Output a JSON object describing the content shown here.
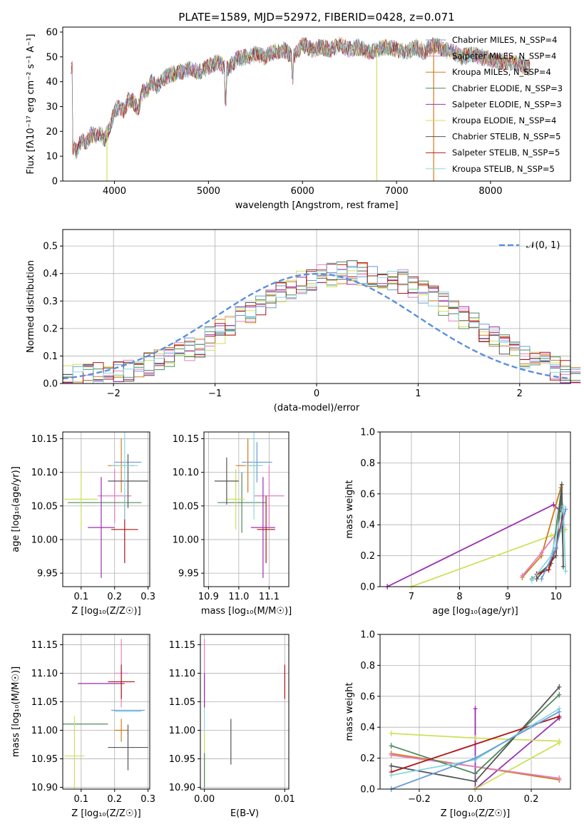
{
  "chart_data": [
    {
      "type": "line",
      "title": "PLATE=1589, MJD=52972, FIBERID=0428, z=0.071",
      "xlabel": "wavelength [Angstrom, rest frame]",
      "ylabel": "Flux [fλ10⁻¹⁷ erg cm⁻² s⁻¹ A⁻¹]",
      "xlim": [
        3450,
        8850
      ],
      "ylim": [
        0,
        62
      ],
      "xticks": [
        4000,
        5000,
        6000,
        7000,
        8000
      ],
      "yticks": [
        0,
        10,
        20,
        30,
        40,
        50,
        60
      ],
      "grid": false,
      "legend_position": "top-right",
      "series": [
        {
          "name": "Chabrier MILES, N_SSP=4",
          "color": "#6a9bd8"
        },
        {
          "name": "Salpeter MILES, N_SSP=4",
          "color": "#e080c0"
        },
        {
          "name": "Kroupa MILES, N_SSP=4",
          "color": "#d07a1a"
        },
        {
          "name": "Chabrier ELODIE, N_SSP=3",
          "color": "#4f8a5a"
        },
        {
          "name": "Salpeter ELODIE, N_SSP=3",
          "color": "#9a2fb0"
        },
        {
          "name": "Kroupa ELODIE, N_SSP=4",
          "color": "#cfe05a"
        },
        {
          "name": "Chabrier STELIB, N_SSP=5",
          "color": "#555555"
        },
        {
          "name": "Salpeter STELIB, N_SSP=5",
          "color": "#b01515"
        },
        {
          "name": "Kroupa STELIB, N_SSP=5",
          "color": "#8ad8e0"
        }
      ],
      "spectrum": {
        "x": [
          3550,
          3600,
          3650,
          3700,
          3750,
          3800,
          3850,
          3900,
          3950,
          4000,
          4050,
          4100,
          4150,
          4200,
          4250,
          4300,
          4350,
          4400,
          4450,
          4500,
          4600,
          4700,
          4800,
          4900,
          5000,
          5100,
          5200,
          5300,
          5400,
          5500,
          5600,
          5700,
          5800,
          5900,
          6000,
          6100,
          6200,
          6300,
          6400,
          6500,
          6600,
          6700,
          6800,
          6900,
          7000,
          7100,
          7200,
          7300,
          7400,
          7500,
          7600,
          7700,
          7800,
          7900,
          8000,
          8100,
          8200,
          8300,
          8400
        ],
        "y": [
          14,
          12,
          17,
          15,
          19,
          18,
          19,
          17,
          22,
          28,
          30,
          28,
          33,
          32,
          29,
          36,
          37,
          40,
          38,
          41,
          43,
          44,
          45,
          44,
          46,
          48,
          45,
          49,
          50,
          51,
          50,
          52,
          53,
          50,
          55,
          53,
          54,
          53,
          55,
          53,
          54,
          52,
          53,
          54,
          53,
          52,
          54,
          52,
          55,
          53,
          52,
          50,
          51,
          50,
          49,
          48,
          48,
          47,
          46
        ]
      }
    },
    {
      "type": "bar",
      "xlabel": "(data-model)/error",
      "ylabel": "Normed distribution",
      "xlim": [
        -2.5,
        2.5
      ],
      "ylim": [
        0,
        0.56
      ],
      "xticks": [
        -2,
        -1,
        0,
        1,
        2
      ],
      "yticks": [
        0.0,
        0.1,
        0.2,
        0.3,
        0.4,
        0.5
      ],
      "grid": true,
      "legend_position": "top-right",
      "reference_curve": {
        "name": "𝒩(0, 1)",
        "color": "#5b8fdc"
      },
      "histogram_step": 0.1,
      "histogram_counts": [
        0.02,
        0.025,
        0.03,
        0.035,
        0.04,
        0.045,
        0.05,
        0.06,
        0.07,
        0.085,
        0.1,
        0.11,
        0.125,
        0.14,
        0.165,
        0.19,
        0.215,
        0.24,
        0.265,
        0.29,
        0.31,
        0.33,
        0.35,
        0.37,
        0.38,
        0.39,
        0.395,
        0.4,
        0.405,
        0.4,
        0.395,
        0.39,
        0.38,
        0.37,
        0.35,
        0.33,
        0.31,
        0.29,
        0.265,
        0.24,
        0.215,
        0.19,
        0.165,
        0.14,
        0.12,
        0.1,
        0.085,
        0.07,
        0.055,
        0.045,
        0.03
      ]
    },
    {
      "type": "scatter",
      "xlabel": "Z [log₁₀(Z/Z☉)]",
      "ylabel": "age  [log₁₀(age/yr)]",
      "xlim": [
        0.045,
        0.305
      ],
      "ylim": [
        9.93,
        10.16
      ],
      "xticks": [
        0.1,
        0.2,
        0.3
      ],
      "yticks": [
        9.95,
        10.0,
        10.05,
        10.1,
        10.15
      ],
      "grid": true,
      "points": [
        {
          "x": 0.24,
          "y": 10.115,
          "xerr": 0.04,
          "yerr": 0.0,
          "color": "#6a9bd8"
        },
        {
          "x": 0.2,
          "y": 10.065,
          "xerr": 0.05,
          "yerr": 0.04,
          "color": "#e080c0"
        },
        {
          "x": 0.22,
          "y": 10.11,
          "xerr": 0.04,
          "yerr": 0.04,
          "color": "#d07a1a"
        },
        {
          "x": 0.17,
          "y": 10.055,
          "xerr": 0.11,
          "yerr": 0.0,
          "color": "#4f8a5a"
        },
        {
          "x": 0.16,
          "y": 10.018,
          "xerr": 0.04,
          "yerr": 0.075,
          "color": "#9a2fb0"
        },
        {
          "x": 0.1,
          "y": 10.06,
          "xerr": 0.05,
          "yerr": 0.045,
          "color": "#cfe05a"
        },
        {
          "x": 0.24,
          "y": 10.087,
          "xerr": 0.06,
          "yerr": 0.04,
          "color": "#555555"
        },
        {
          "x": 0.23,
          "y": 10.015,
          "xerr": 0.04,
          "yerr": 0.05,
          "color": "#b01515"
        },
        {
          "x": 0.23,
          "y": 10.11,
          "xerr": 0.04,
          "yerr": 0.08,
          "color": "#8ad8e0"
        }
      ]
    },
    {
      "type": "scatter",
      "xlabel": "mass [log₁₀(M/M☉)]",
      "ylabel": "",
      "xlim": [
        10.885,
        11.165
      ],
      "ylim": [
        9.93,
        10.16
      ],
      "xticks": [
        10.9,
        11.0,
        11.1
      ],
      "yticks": [
        9.95,
        10.0,
        10.05,
        10.1,
        10.15
      ],
      "grid": true,
      "points": [
        {
          "x": 11.06,
          "y": 10.115,
          "xerr": 0.05,
          "yerr": 0.03,
          "color": "#6a9bd8"
        },
        {
          "x": 11.1,
          "y": 10.065,
          "xerr": 0.05,
          "yerr": 0.045,
          "color": "#e080c0"
        },
        {
          "x": 11.03,
          "y": 10.11,
          "xerr": 0.04,
          "yerr": 0.04,
          "color": "#d07a1a"
        },
        {
          "x": 11.01,
          "y": 10.055,
          "xerr": 0.08,
          "yerr": 0.045,
          "color": "#4f8a5a"
        },
        {
          "x": 11.08,
          "y": 10.018,
          "xerr": 0.04,
          "yerr": 0.075,
          "color": "#9a2fb0"
        },
        {
          "x": 10.99,
          "y": 10.06,
          "xerr": 0.03,
          "yerr": 0.045,
          "color": "#cfe05a"
        },
        {
          "x": 10.96,
          "y": 10.087,
          "xerr": 0.04,
          "yerr": 0.035,
          "color": "#555555"
        },
        {
          "x": 11.09,
          "y": 10.015,
          "xerr": 0.03,
          "yerr": 0.05,
          "color": "#b01515"
        },
        {
          "x": 11.05,
          "y": 10.11,
          "xerr": 0.03,
          "yerr": 0.08,
          "color": "#8ad8e0"
        }
      ]
    },
    {
      "type": "line",
      "xlabel": "age  [log₁₀(age/yr)]",
      "ylabel": "mass weight",
      "xlim": [
        6.35,
        10.3
      ],
      "ylim": [
        0,
        1.0
      ],
      "xticks": [
        7,
        8,
        9,
        10
      ],
      "yticks": [
        0.0,
        0.2,
        0.4,
        0.6,
        0.8,
        1.0
      ],
      "grid": true,
      "series": [
        {
          "color": "#9a2fb0",
          "x": [
            6.5,
            9.95,
            10.15
          ],
          "y": [
            0.0,
            0.53,
            0.47
          ]
        },
        {
          "color": "#cfe05a",
          "x": [
            7.0,
            9.9,
            10.2
          ],
          "y": [
            0.0,
            0.33,
            0.37
          ]
        },
        {
          "color": "#d07a1a",
          "x": [
            9.3,
            9.7,
            10.1
          ],
          "y": [
            0.06,
            0.2,
            0.64
          ]
        },
        {
          "color": "#e080c0",
          "x": [
            9.3,
            9.7,
            10.15
          ],
          "y": [
            0.07,
            0.22,
            0.4
          ]
        },
        {
          "color": "#4f8a5a",
          "x": [
            9.5,
            9.9,
            10.1,
            10.15
          ],
          "y": [
            0.05,
            0.15,
            0.6,
            0.2
          ]
        },
        {
          "color": "#555555",
          "x": [
            9.6,
            10.0,
            10.12,
            10.15
          ],
          "y": [
            0.05,
            0.2,
            0.66,
            0.13
          ]
        },
        {
          "color": "#b01515",
          "x": [
            9.6,
            9.85,
            10.0,
            10.15
          ],
          "y": [
            0.08,
            0.11,
            0.25,
            0.47
          ]
        },
        {
          "color": "#8ad8e0",
          "x": [
            9.5,
            9.9,
            10.15,
            10.2
          ],
          "y": [
            0.04,
            0.2,
            0.52,
            0.1
          ]
        },
        {
          "color": "#6a9bd8",
          "x": [
            9.7,
            10.0,
            10.2
          ],
          "y": [
            0.05,
            0.25,
            0.5
          ]
        }
      ]
    },
    {
      "type": "scatter",
      "xlabel": "Z [log₁₀(Z/Z☉)]",
      "ylabel": "mass [log₁₀(M/M☉)]",
      "xlim": [
        0.045,
        0.305
      ],
      "ylim": [
        10.897,
        11.168
      ],
      "xticks": [
        0.1,
        0.2,
        0.3
      ],
      "yticks": [
        10.9,
        10.95,
        11.0,
        11.05,
        11.1,
        11.15
      ],
      "grid": true,
      "points": [
        {
          "x": 0.24,
          "y": 11.035,
          "xerr": 0.05,
          "yerr": 0.0,
          "color": "#6a9bd8"
        },
        {
          "x": 0.22,
          "y": 11.1,
          "xerr": 0.02,
          "yerr": 0.06,
          "color": "#e080c0"
        },
        {
          "x": 0.22,
          "y": 11.0,
          "xerr": 0.02,
          "yerr": 0.02,
          "color": "#d07a1a"
        },
        {
          "x": 0.11,
          "y": 11.011,
          "xerr": 0.07,
          "yerr": 0.0,
          "color": "#4f8a5a"
        },
        {
          "x": 0.16,
          "y": 11.082,
          "xerr": 0.07,
          "yerr": 0.0,
          "color": "#9a2fb0"
        },
        {
          "x": 0.08,
          "y": 10.955,
          "xerr": 0.03,
          "yerr": 0.07,
          "color": "#cfe05a"
        },
        {
          "x": 0.24,
          "y": 10.97,
          "xerr": 0.06,
          "yerr": 0.04,
          "color": "#555555"
        },
        {
          "x": 0.22,
          "y": 11.085,
          "xerr": 0.04,
          "yerr": 0.03,
          "color": "#b01515"
        },
        {
          "x": 0.24,
          "y": 11.033,
          "xerr": 0.04,
          "yerr": 0.0,
          "color": "#8ad8e0"
        }
      ]
    },
    {
      "type": "scatter",
      "xlabel": "E(B-V)",
      "ylabel": "",
      "xlim": [
        -0.0005,
        0.0105
      ],
      "ylim": [
        10.897,
        11.168
      ],
      "xticks": [
        0.0,
        0.01
      ],
      "yticks": [
        10.9,
        10.95,
        11.0,
        11.05,
        11.1,
        11.15
      ],
      "grid": true,
      "points": [
        {
          "x": 0.0,
          "y": 11.1,
          "yerr": 0.06,
          "color": "#e080c0"
        },
        {
          "x": 0.0,
          "y": 11.07,
          "yerr": 0.03,
          "color": "#9a2fb0"
        },
        {
          "x": 0.0,
          "y": 11.0,
          "yerr": 0.04,
          "color": "#8ad8e0"
        },
        {
          "x": 0.0,
          "y": 10.95,
          "yerr": 0.05,
          "color": "#cfe05a"
        },
        {
          "x": 0.0,
          "y": 10.93,
          "yerr": 0.03,
          "color": "#4f8a5a"
        },
        {
          "x": 0.0033,
          "y": 10.98,
          "yerr": 0.04,
          "color": "#555555"
        },
        {
          "x": 0.01,
          "y": 11.085,
          "yerr": 0.03,
          "color": "#b01515"
        }
      ]
    },
    {
      "type": "line",
      "xlabel": "Z [log₁₀(Z/Z☉)]",
      "ylabel": "mass weight",
      "xlim": [
        -0.34,
        0.34
      ],
      "ylim": [
        0,
        1.0
      ],
      "xticks": [
        -0.2,
        0.0,
        0.2
      ],
      "yticks": [
        0.0,
        0.2,
        0.4,
        0.6,
        0.8,
        1.0
      ],
      "grid": true,
      "series": [
        {
          "color": "#9a2fb0",
          "x": [
            0.0,
            0.0,
            0.3
          ],
          "y": [
            0.52,
            0.0,
            0.46
          ]
        },
        {
          "color": "#cfe05a",
          "x": [
            -0.3,
            0.0,
            0.3
          ],
          "y": [
            0.36,
            0.33,
            0.31
          ]
        },
        {
          "color": "#cfe05a",
          "x": [
            0.0,
            0.3
          ],
          "y": [
            0.0,
            0.3
          ]
        },
        {
          "color": "#d07a1a",
          "x": [
            -0.3,
            0.3
          ],
          "y": [
            0.23,
            0.06
          ]
        },
        {
          "color": "#e080c0",
          "x": [
            -0.3,
            0.3
          ],
          "y": [
            0.22,
            0.07
          ]
        },
        {
          "color": "#4f8a5a",
          "x": [
            -0.3,
            0.0,
            0.3
          ],
          "y": [
            0.28,
            0.1,
            0.61
          ]
        },
        {
          "color": "#555555",
          "x": [
            -0.3,
            0.0,
            0.3
          ],
          "y": [
            0.15,
            0.05,
            0.66
          ]
        },
        {
          "color": "#b01515",
          "x": [
            -0.3,
            0.3
          ],
          "y": [
            0.11,
            0.47
          ]
        },
        {
          "color": "#8ad8e0",
          "x": [
            -0.3,
            0.0,
            0.3
          ],
          "y": [
            0.09,
            0.19,
            0.52
          ]
        },
        {
          "color": "#6a9bd8",
          "x": [
            -0.3,
            0.0,
            0.3
          ],
          "y": [
            0.0,
            0.2,
            0.5
          ]
        }
      ]
    }
  ]
}
